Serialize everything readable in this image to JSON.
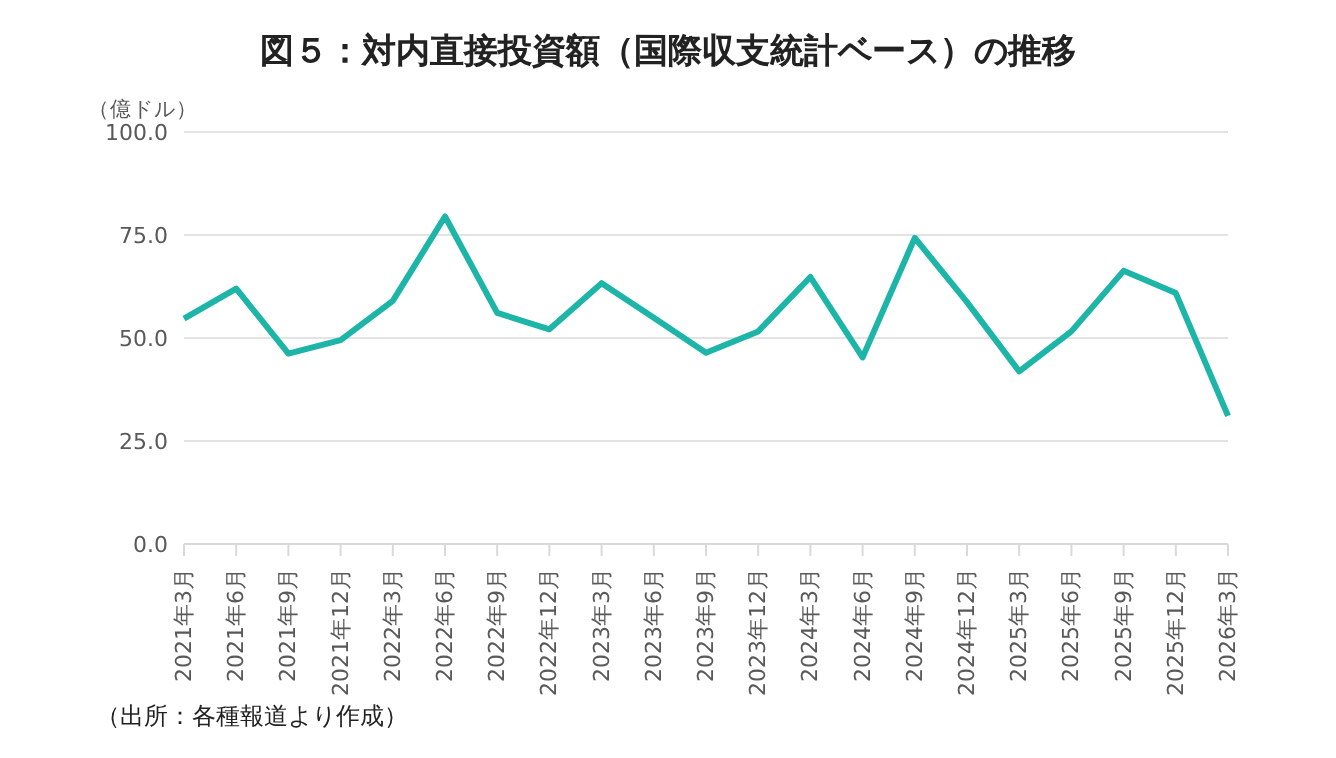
{
  "chart_data": {
    "type": "line",
    "title": "図５：対内直接投資額（国際収支統計ベース）の推移",
    "ylabel": "（億ドル）",
    "annotations": [
      "（出所：各種報道より作成）"
    ],
    "categories": [
      "2021年3月",
      "2021年6月",
      "2021年9月",
      "2021年12月",
      "2022年3月",
      "2022年6月",
      "2022年9月",
      "2022年12月",
      "2023年3月",
      "2023年6月",
      "2023年9月",
      "2023年12月",
      "2024年3月",
      "2024年6月",
      "2024年9月",
      "2024年12月",
      "2025年3月",
      "2025年6月",
      "2025年9月",
      "2025年12月",
      "2026年3月"
    ],
    "series": [
      {
        "color": "#1cb5a8",
        "values": [
          54.7,
          62.0,
          46.2,
          49.5,
          59.0,
          79.5,
          56.1,
          52.1,
          63.3,
          54.9,
          46.4,
          51.6,
          64.8,
          45.3,
          74.3,
          58.7,
          41.9,
          51.6,
          66.3,
          60.9,
          31.1
        ]
      }
    ],
    "ylim": [
      0,
      100
    ],
    "yticks": [
      {
        "value": 0,
        "label": "0.0"
      },
      {
        "value": 25,
        "label": "25.0"
      },
      {
        "value": 50,
        "label": "50.0"
      },
      {
        "value": 75,
        "label": "75.0"
      },
      {
        "value": 100,
        "label": "100.0"
      }
    ],
    "grid": "y",
    "legend": false,
    "marker": "none",
    "line_style": "solid"
  }
}
